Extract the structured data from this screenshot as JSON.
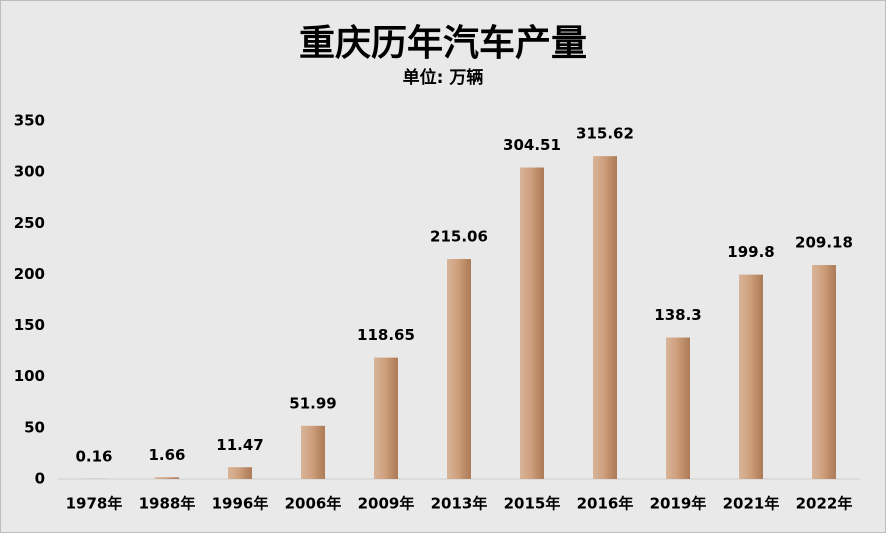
{
  "chart_data": {
    "type": "bar",
    "title": "重庆历年汽车产量",
    "subtitle": "单位: 万辆",
    "categories": [
      "1978年",
      "1988年",
      "1996年",
      "2006年",
      "2009年",
      "2013年",
      "2015年",
      "2016年",
      "2019年",
      "2021年",
      "2022年"
    ],
    "values": [
      0.16,
      1.66,
      11.47,
      51.99,
      118.65,
      215.06,
      304.51,
      315.62,
      138.3,
      199.8,
      209.18
    ],
    "color": "#c48c63",
    "ylim": [
      0,
      350
    ],
    "yticks": [
      0,
      50,
      100,
      150,
      200,
      250,
      300,
      350
    ],
    "grid": false
  }
}
